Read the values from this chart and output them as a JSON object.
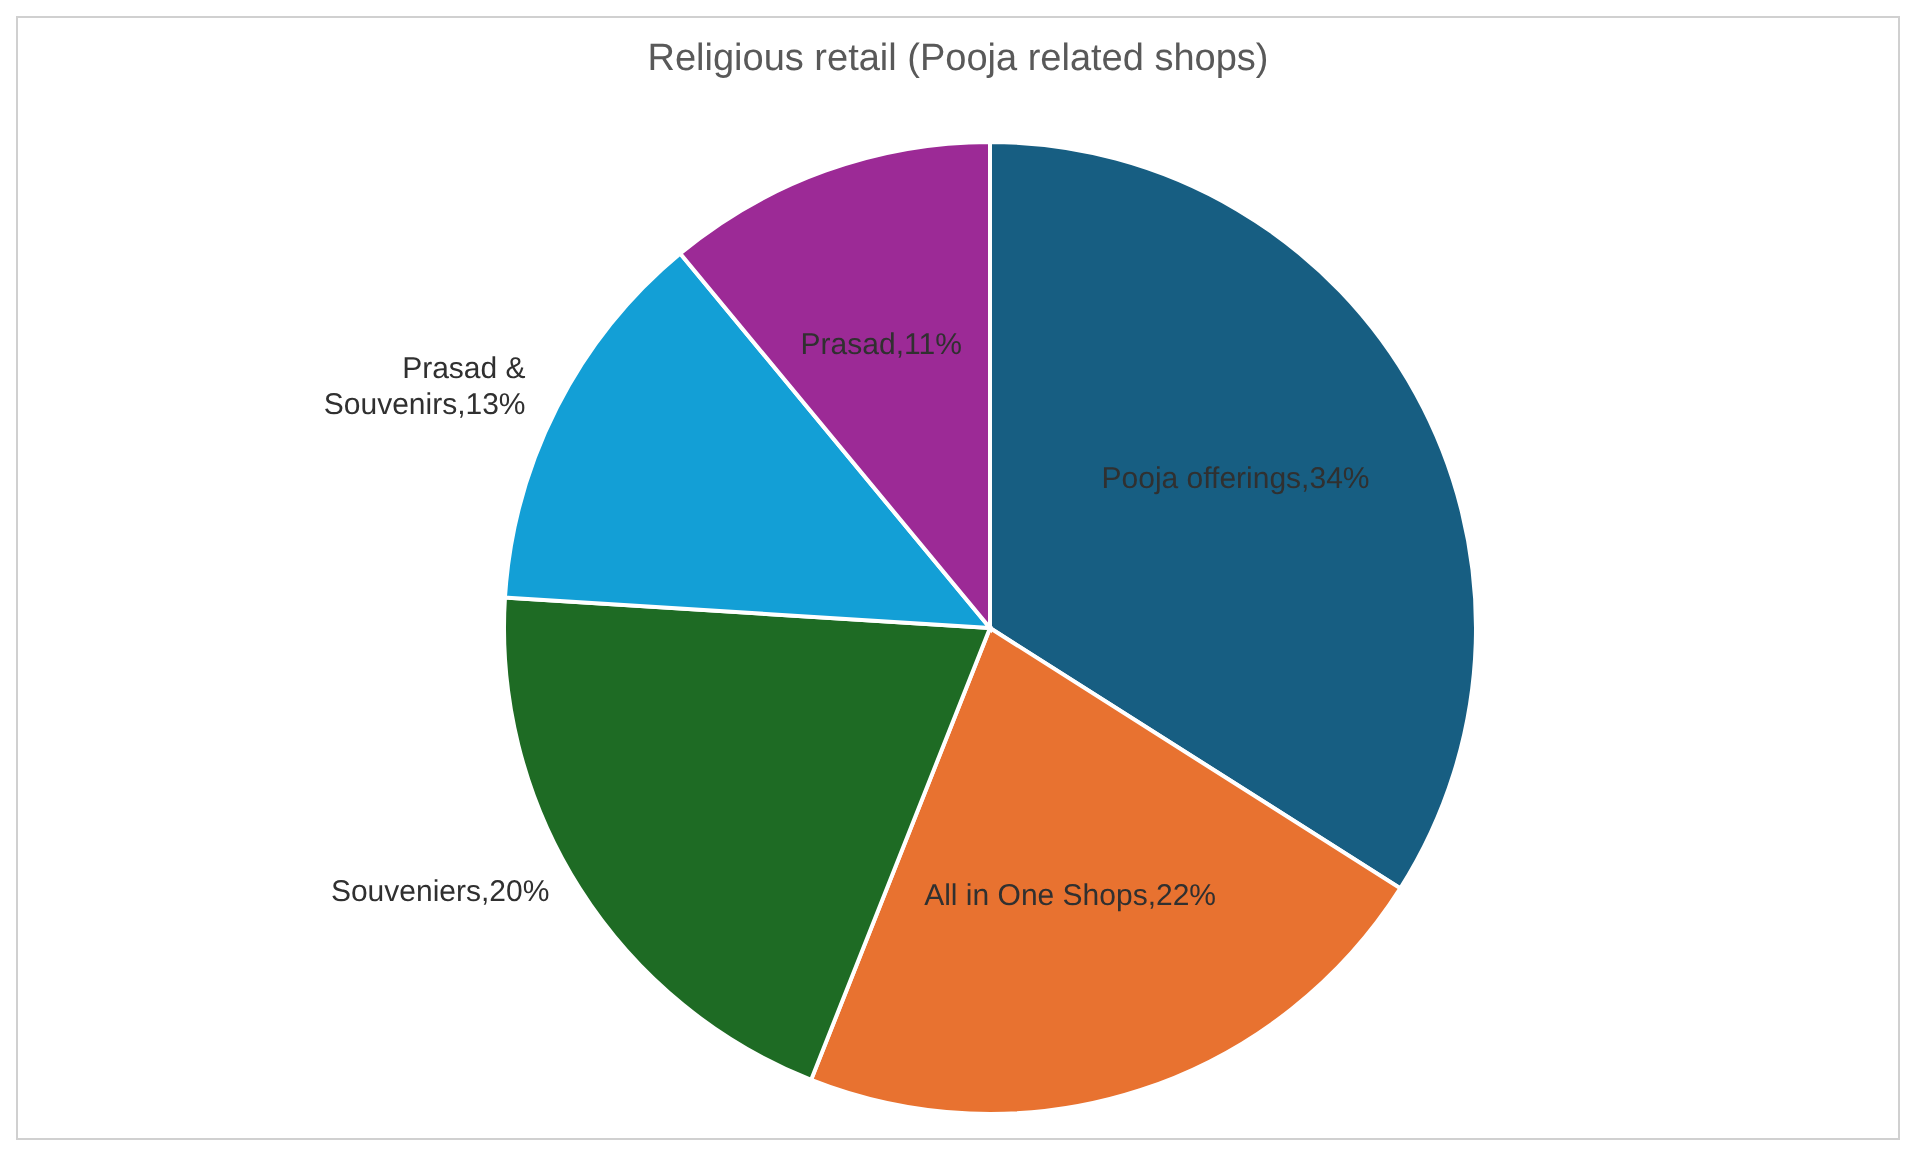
{
  "chart_data": {
    "type": "pie",
    "title": "Religious retail (Pooja related shops)",
    "categories": [
      "Pooja offerings",
      "All in One Shops",
      "Souveniers",
      "Prasad & Souvenirs",
      "Prasad"
    ],
    "values": [
      34,
      22,
      20,
      13,
      11
    ],
    "value_labels": [
      "34%",
      "22%",
      "20%",
      "13%",
      "11%"
    ],
    "colors": [
      "#175e82",
      "#e87230",
      "#1e6b24",
      "#139fd6",
      "#9c2a96"
    ],
    "legend": false
  }
}
